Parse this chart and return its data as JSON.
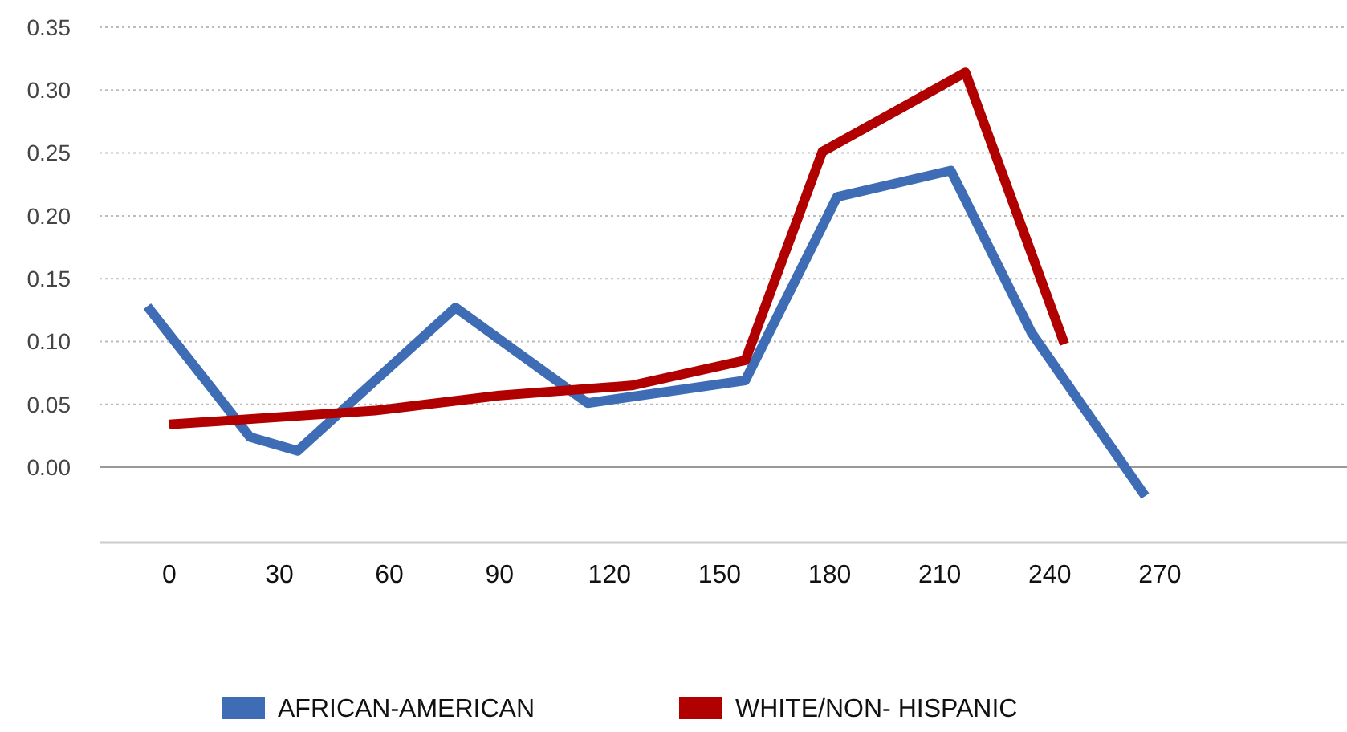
{
  "chart_data": {
    "type": "line",
    "xlim": [
      -19,
      321
    ],
    "xticks": [
      0,
      30,
      60,
      90,
      120,
      150,
      180,
      210,
      240,
      270
    ],
    "ylim": [
      -0.06,
      0.35
    ],
    "yticks": [
      {
        "value": 0,
        "label": "0.00"
      },
      {
        "value": 0.05,
        "label": "0.05"
      },
      {
        "value": 0.1,
        "label": "0.10"
      },
      {
        "value": 0.15,
        "label": "0.15"
      },
      {
        "value": 0.2,
        "label": "0.20"
      },
      {
        "value": 0.25,
        "label": "0.25"
      },
      {
        "value": 0.3,
        "label": "0.30"
      },
      {
        "value": 0.35,
        "label": "0.35"
      }
    ],
    "grid": "y",
    "legend": "bottom",
    "line_style": "solid",
    "marker": "none",
    "series": [
      {
        "name": "AFRICAN-AMERICAN",
        "color": "#3e6db5",
        "x": [
          -6,
          22,
          35,
          78,
          114,
          157,
          182,
          213,
          235,
          266
        ],
        "values": [
          0.128,
          0.024,
          0.013,
          0.127,
          0.051,
          0.069,
          0.215,
          0.236,
          0.107,
          -0.023
        ]
      },
      {
        "name": "WHITE/NON- HISPANIC",
        "color": "#b00000",
        "x": [
          0,
          56,
          90,
          126,
          157,
          178,
          217,
          244
        ],
        "values": [
          0.034,
          0.045,
          0.057,
          0.065,
          0.085,
          0.251,
          0.314,
          0.098
        ]
      }
    ]
  }
}
